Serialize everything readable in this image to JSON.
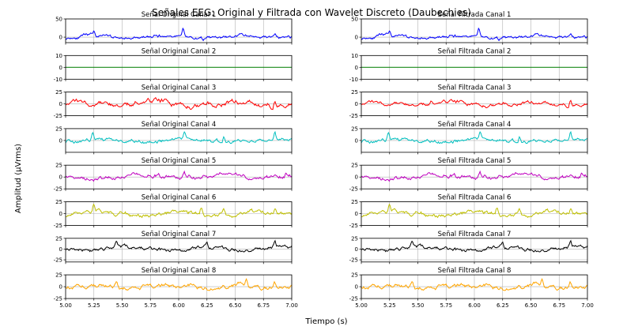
{
  "figure": {
    "title": "Señales EEG: Original y Filtrada con Wavelet Discreto (Daubechies)",
    "xlabel": "Tiempo (s)",
    "ylabel": "Amplitud (µVrms)"
  },
  "chart_data": {
    "type": "line",
    "x_range": [
      5.0,
      7.0
    ],
    "x_ticks": [
      "5.00",
      "5.25",
      "5.50",
      "5.75",
      "6.00",
      "6.25",
      "6.50",
      "6.75",
      "7.00"
    ],
    "x_tick_values": [
      5.0,
      5.25,
      5.5,
      5.75,
      6.0,
      6.25,
      6.5,
      6.75,
      7.0
    ],
    "grid": true,
    "columns": [
      {
        "kind": "original",
        "panels": [
          {
            "title": "Señal Original Canal 1",
            "color": "#0000ff",
            "ylim": [
              -15,
              50
            ],
            "yticks": [
              0,
              50
            ],
            "amp": 6,
            "seed": 11,
            "spikes": [
              [
                5.25,
                12
              ],
              [
                6.04,
                22
              ],
              [
                6.85,
                10
              ]
            ],
            "values": []
          },
          {
            "title": "Señal Original Canal 2",
            "color": "#008000",
            "ylim": [
              -10,
              10
            ],
            "yticks": [
              -10,
              0,
              10
            ],
            "amp": 0,
            "seed": 0,
            "spikes": [],
            "values": [
              0,
              0
            ]
          },
          {
            "title": "Señal Original Canal 3",
            "color": "#ff0000",
            "ylim": [
              -25,
              25
            ],
            "yticks": [
              -25,
              0,
              25
            ],
            "amp": 7,
            "seed": 31,
            "spikes": [
              [
                5.62,
                10
              ],
              [
                6.85,
                14
              ]
            ],
            "values": []
          },
          {
            "title": "Señal Original Canal 4",
            "color": "#00bfbf",
            "ylim": [
              -25,
              25
            ],
            "yticks": [
              0,
              25
            ],
            "amp": 5,
            "seed": 41,
            "spikes": [
              [
                5.24,
                15
              ],
              [
                6.05,
                14
              ],
              [
                6.4,
                12
              ],
              [
                6.85,
                14
              ]
            ],
            "values": []
          },
          {
            "title": "Señal Original Canal 5",
            "color": "#bf00bf",
            "ylim": [
              -25,
              25
            ],
            "yticks": [
              -25,
              0,
              25
            ],
            "amp": 6,
            "seed": 51,
            "spikes": [
              [
                6.05,
                10
              ],
              [
                6.95,
                8
              ]
            ],
            "values": []
          },
          {
            "title": "Señal Original Canal 6",
            "color": "#bfbf00",
            "ylim": [
              -25,
              25
            ],
            "yticks": [
              -25,
              0,
              25
            ],
            "amp": 6,
            "seed": 61,
            "spikes": [
              [
                5.25,
                16
              ],
              [
                6.2,
                14
              ],
              [
                6.4,
                14
              ],
              [
                6.85,
                12
              ]
            ],
            "values": []
          },
          {
            "title": "Señal Original Canal 7",
            "color": "#000000",
            "ylim": [
              -30,
              25
            ],
            "yticks": [
              -25,
              0,
              25
            ],
            "amp": 6,
            "seed": 71,
            "spikes": [
              [
                5.45,
                12
              ],
              [
                6.25,
                14
              ],
              [
                6.85,
                12
              ]
            ],
            "values": []
          },
          {
            "title": "Señal Original Canal 8",
            "color": "#ffa500",
            "ylim": [
              -25,
              25
            ],
            "yticks": [
              -25,
              0,
              25
            ],
            "amp": 6,
            "seed": 81,
            "spikes": [
              [
                5.45,
                14
              ],
              [
                6.6,
                12
              ],
              [
                6.85,
                12
              ]
            ],
            "values": []
          }
        ]
      },
      {
        "kind": "filtrada",
        "panels": [
          {
            "title": "Señal Filtrada Canal 1",
            "color": "#0000ff",
            "ylim": [
              -15,
              50
            ],
            "yticks": [
              0,
              50
            ],
            "amp": 6,
            "seed": 11,
            "spikes": [
              [
                5.25,
                12
              ],
              [
                6.04,
                22
              ],
              [
                6.85,
                10
              ]
            ],
            "values": []
          },
          {
            "title": "Señal Filtrada Canal 2",
            "color": "#008000",
            "ylim": [
              -10,
              10
            ],
            "yticks": [
              -10,
              0,
              10
            ],
            "amp": 0,
            "seed": 0,
            "spikes": [],
            "values": [
              0,
              0
            ]
          },
          {
            "title": "Señal Filtrada Canal 3",
            "color": "#ff0000",
            "ylim": [
              -25,
              25
            ],
            "yticks": [
              -25,
              0,
              25
            ],
            "amp": 5,
            "seed": 31,
            "spikes": [
              [
                5.62,
                10
              ],
              [
                6.85,
                14
              ]
            ],
            "values": []
          },
          {
            "title": "Señal Filtrada Canal 4",
            "color": "#00bfbf",
            "ylim": [
              -25,
              25
            ],
            "yticks": [
              0,
              25
            ],
            "amp": 5,
            "seed": 41,
            "spikes": [
              [
                5.24,
                15
              ],
              [
                6.05,
                14
              ],
              [
                6.4,
                12
              ],
              [
                6.85,
                14
              ]
            ],
            "values": []
          },
          {
            "title": "Señal Filtrada Canal 5",
            "color": "#bf00bf",
            "ylim": [
              -25,
              25
            ],
            "yticks": [
              -25,
              0,
              25
            ],
            "amp": 6,
            "seed": 51,
            "spikes": [
              [
                6.05,
                10
              ],
              [
                6.95,
                8
              ]
            ],
            "values": []
          },
          {
            "title": "Señal Filtrada Canal 6",
            "color": "#bfbf00",
            "ylim": [
              -25,
              25
            ],
            "yticks": [
              -25,
              0,
              25
            ],
            "amp": 6,
            "seed": 61,
            "spikes": [
              [
                5.25,
                16
              ],
              [
                6.2,
                14
              ],
              [
                6.4,
                14
              ],
              [
                6.85,
                12
              ]
            ],
            "values": []
          },
          {
            "title": "Señal Filtrada Canal 7",
            "color": "#000000",
            "ylim": [
              -30,
              25
            ],
            "yticks": [
              -25,
              0,
              25
            ],
            "amp": 6,
            "seed": 71,
            "spikes": [
              [
                5.45,
                12
              ],
              [
                6.25,
                14
              ],
              [
                6.85,
                12
              ]
            ],
            "values": []
          },
          {
            "title": "Señal Filtrada Canal 8",
            "color": "#ffa500",
            "ylim": [
              -25,
              25
            ],
            "yticks": [
              -25,
              0,
              25
            ],
            "amp": 6,
            "seed": 81,
            "spikes": [
              [
                5.45,
                14
              ],
              [
                6.6,
                12
              ],
              [
                6.85,
                12
              ]
            ],
            "values": []
          }
        ]
      }
    ]
  }
}
